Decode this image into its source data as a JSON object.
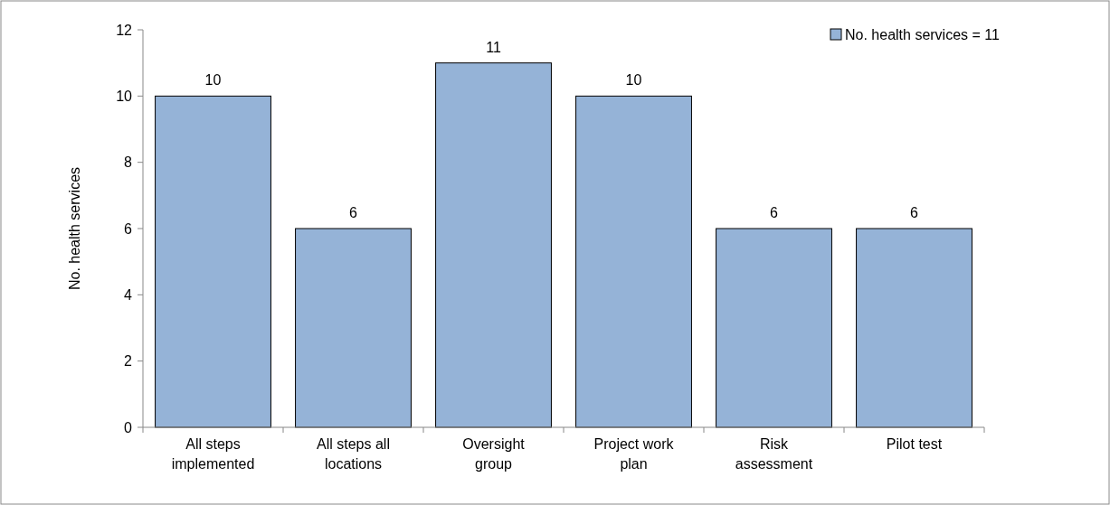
{
  "chart_data": {
    "type": "bar",
    "ylabel": "No. health services",
    "categories": [
      "All steps implemented",
      "All steps all locations",
      "Oversight group",
      "Project work plan",
      "Risk assessment",
      "Pilot test"
    ],
    "series": [
      {
        "name": "No. health services = 11",
        "color": "#95b3d7",
        "values": [
          10,
          6,
          11,
          10,
          6,
          6
        ]
      }
    ],
    "ylim": [
      0,
      12
    ],
    "yticks": [
      0,
      2,
      4,
      6,
      8,
      10,
      12
    ],
    "grid": false,
    "legend": "top right",
    "data_labels": true
  }
}
